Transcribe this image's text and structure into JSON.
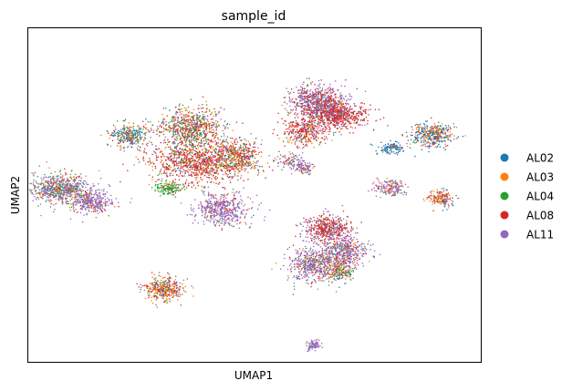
{
  "chart_data": {
    "type": "scatter",
    "title": "sample_id",
    "xlabel": "UMAP1",
    "ylabel": "UMAP2",
    "xlim": [
      0,
      100
    ],
    "ylim": [
      0,
      100
    ],
    "grid": false,
    "ticks": false,
    "legend_placement": "right",
    "series": [
      {
        "name": "AL02",
        "color": "#1f77b4"
      },
      {
        "name": "AL03",
        "color": "#ff7f0e"
      },
      {
        "name": "AL04",
        "color": "#2ca02c"
      },
      {
        "name": "AL08",
        "color": "#d62728"
      },
      {
        "name": "AL11",
        "color": "#9467bd"
      }
    ],
    "clusters": [
      {
        "cx": 7,
        "cy": 52,
        "rx": 6,
        "ry": 4.5,
        "n": 700,
        "mix": [
          0.08,
          0.14,
          0.18,
          0.12,
          0.48
        ]
      },
      {
        "cx": 14,
        "cy": 48,
        "rx": 4.5,
        "ry": 4,
        "n": 350,
        "mix": [
          0.05,
          0.1,
          0.05,
          0.1,
          0.7
        ]
      },
      {
        "cx": 22,
        "cy": 68,
        "rx": 4,
        "ry": 3.5,
        "n": 300,
        "mix": [
          0.35,
          0.2,
          0.2,
          0.15,
          0.1
        ]
      },
      {
        "cx": 36,
        "cy": 70,
        "rx": 7,
        "ry": 6,
        "n": 750,
        "mix": [
          0.06,
          0.18,
          0.28,
          0.32,
          0.16
        ]
      },
      {
        "cx": 38,
        "cy": 60,
        "rx": 11,
        "ry": 6.5,
        "n": 1100,
        "mix": [
          0.06,
          0.16,
          0.1,
          0.55,
          0.13
        ]
      },
      {
        "cx": 46,
        "cy": 62,
        "rx": 5,
        "ry": 5,
        "n": 400,
        "mix": [
          0.1,
          0.3,
          0.15,
          0.3,
          0.15
        ]
      },
      {
        "cx": 31,
        "cy": 52,
        "rx": 3,
        "ry": 1.8,
        "n": 150,
        "mix": [
          0.02,
          0.05,
          0.8,
          0.08,
          0.05
        ]
      },
      {
        "cx": 43,
        "cy": 46,
        "rx": 6,
        "ry": 5,
        "n": 500,
        "mix": [
          0.02,
          0.05,
          0.04,
          0.09,
          0.8
        ]
      },
      {
        "cx": 64,
        "cy": 78,
        "rx": 6,
        "ry": 5,
        "n": 700,
        "mix": [
          0.04,
          0.05,
          0.03,
          0.28,
          0.6
        ]
      },
      {
        "cx": 68,
        "cy": 74,
        "rx": 7,
        "ry": 4,
        "n": 700,
        "mix": [
          0.04,
          0.06,
          0.02,
          0.72,
          0.16
        ]
      },
      {
        "cx": 61,
        "cy": 69,
        "rx": 5,
        "ry": 4,
        "n": 350,
        "mix": [
          0.05,
          0.15,
          0.05,
          0.55,
          0.2
        ]
      },
      {
        "cx": 58,
        "cy": 60,
        "rx": 3,
        "ry": 2.5,
        "n": 100,
        "mix": [
          0.1,
          0.1,
          0.1,
          0.2,
          0.5
        ]
      },
      {
        "cx": 61,
        "cy": 58,
        "rx": 2,
        "ry": 2,
        "n": 90,
        "mix": [
          0.05,
          0.1,
          0.05,
          0.1,
          0.7
        ]
      },
      {
        "cx": 80,
        "cy": 64,
        "rx": 3,
        "ry": 1.8,
        "n": 120,
        "mix": [
          0.75,
          0.1,
          0.05,
          0.05,
          0.05
        ]
      },
      {
        "cx": 89,
        "cy": 68,
        "rx": 4.5,
        "ry": 3.5,
        "n": 400,
        "mix": [
          0.38,
          0.28,
          0.08,
          0.14,
          0.12
        ]
      },
      {
        "cx": 80,
        "cy": 52,
        "rx": 3.5,
        "ry": 2.5,
        "n": 180,
        "mix": [
          0.05,
          0.15,
          0.05,
          0.1,
          0.65
        ]
      },
      {
        "cx": 91,
        "cy": 49,
        "rx": 3,
        "ry": 2.5,
        "n": 180,
        "mix": [
          0.1,
          0.45,
          0.05,
          0.25,
          0.15
        ]
      },
      {
        "cx": 66,
        "cy": 40,
        "rx": 5,
        "ry": 4,
        "n": 500,
        "mix": [
          0.03,
          0.06,
          0.04,
          0.55,
          0.32
        ]
      },
      {
        "cx": 70,
        "cy": 33,
        "rx": 5,
        "ry": 4.5,
        "n": 500,
        "mix": [
          0.05,
          0.1,
          0.05,
          0.15,
          0.65
        ]
      },
      {
        "cx": 63,
        "cy": 29,
        "rx": 6,
        "ry": 5,
        "n": 550,
        "mix": [
          0.06,
          0.14,
          0.1,
          0.12,
          0.58
        ]
      },
      {
        "cx": 69,
        "cy": 27,
        "rx": 3,
        "ry": 3,
        "n": 180,
        "mix": [
          0.2,
          0.2,
          0.3,
          0.15,
          0.15
        ]
      },
      {
        "cx": 30,
        "cy": 22,
        "rx": 4.5,
        "ry": 3.5,
        "n": 400,
        "mix": [
          0.06,
          0.4,
          0.14,
          0.2,
          0.2
        ]
      },
      {
        "cx": 63,
        "cy": 5,
        "rx": 1.6,
        "ry": 1.6,
        "n": 80,
        "mix": [
          0.02,
          0.02,
          0.02,
          0.04,
          0.9
        ]
      }
    ]
  }
}
